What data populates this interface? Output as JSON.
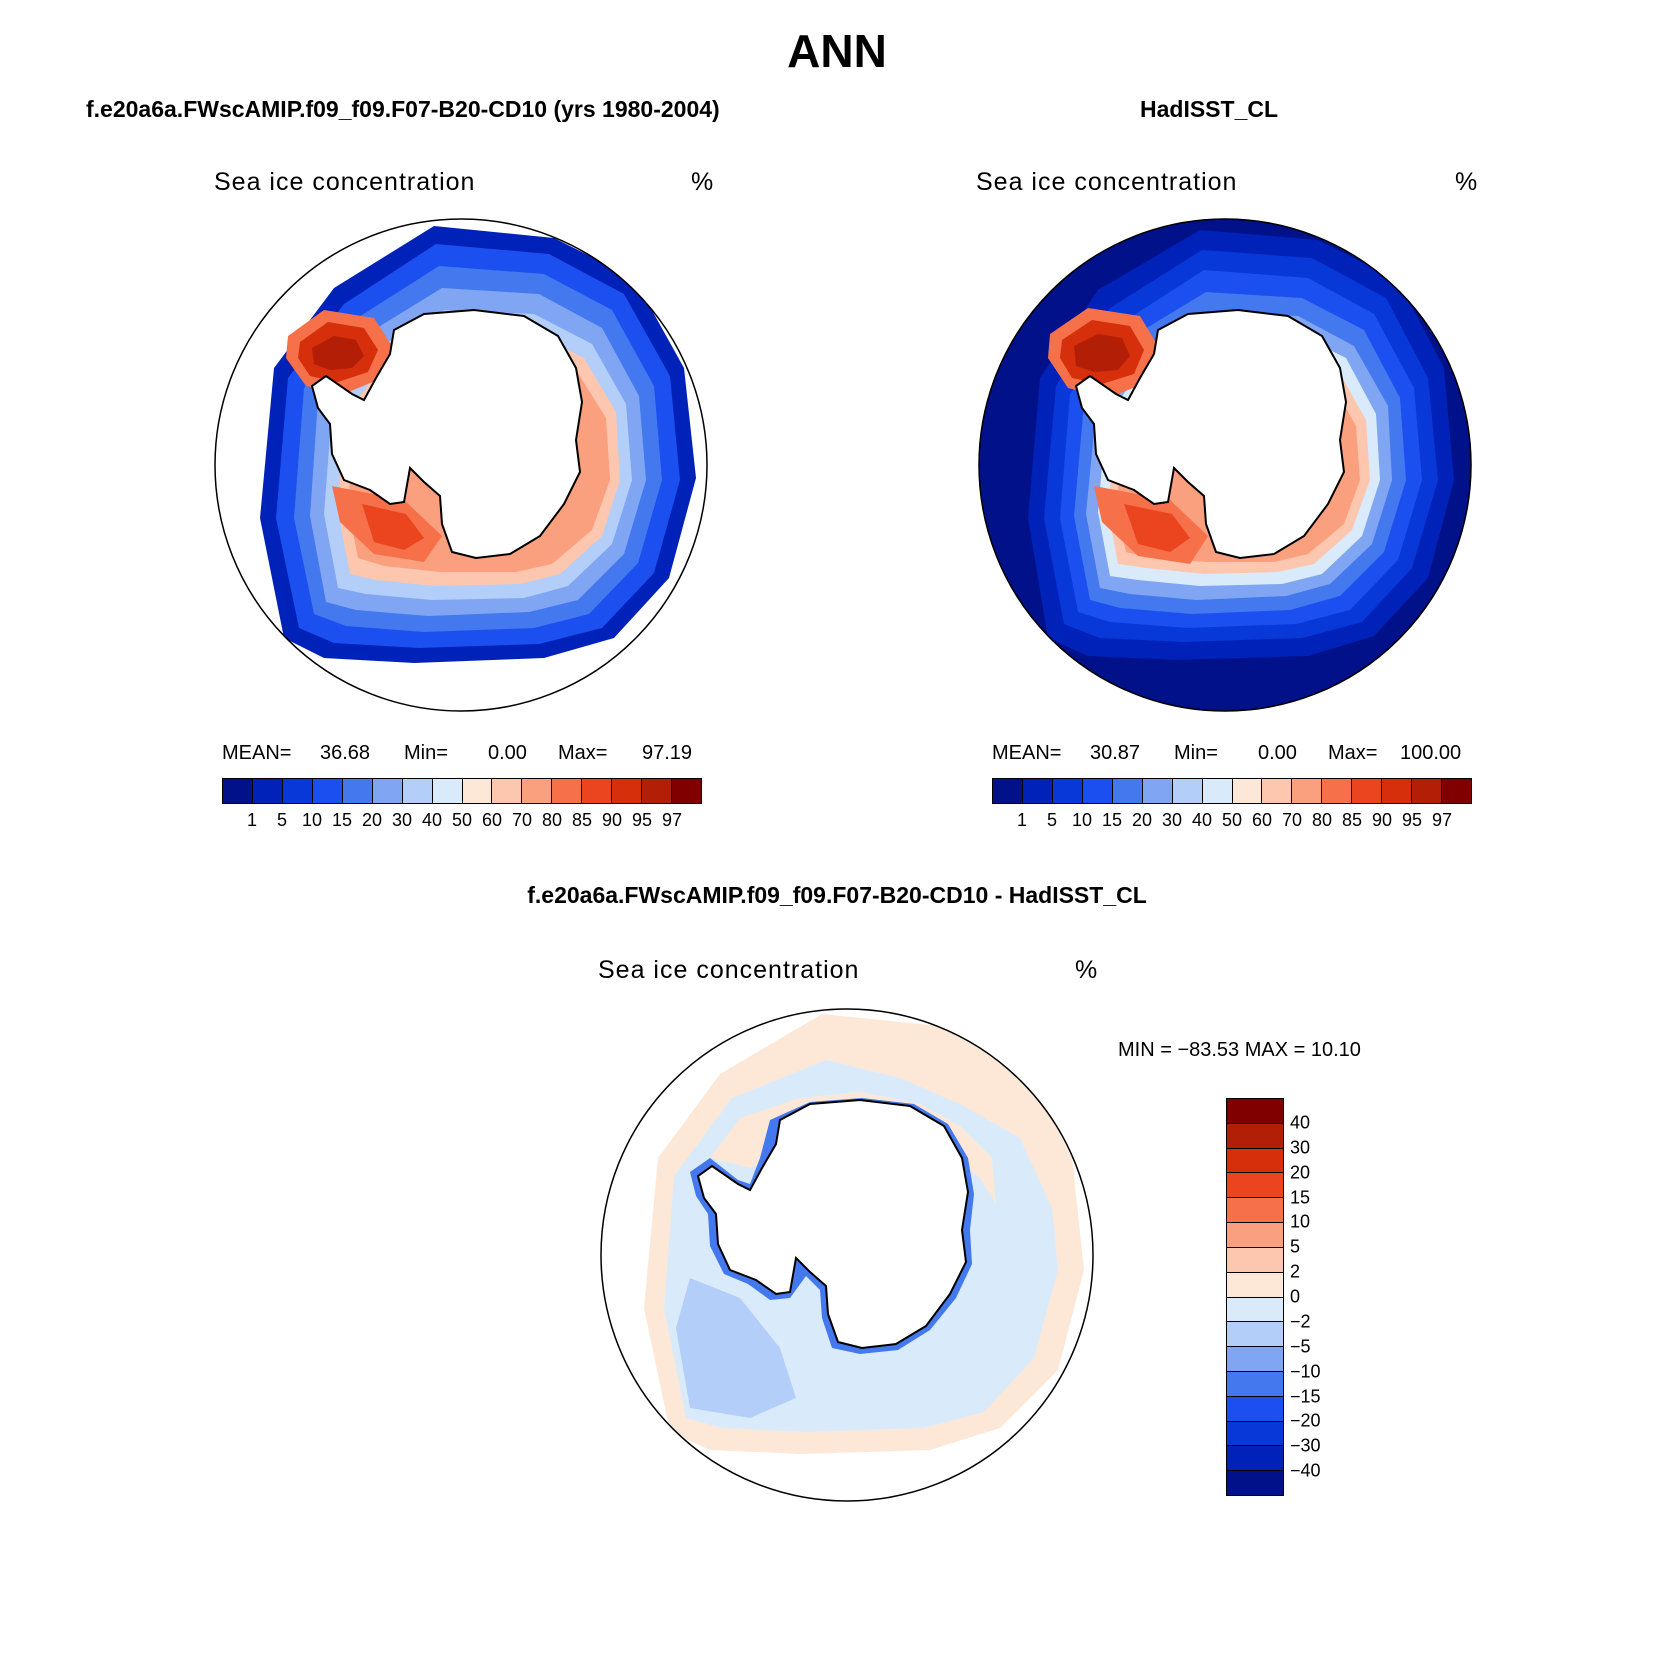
{
  "title": "ANN",
  "panels": [
    {
      "title": "f.e20a6a.FWscAMIP.f09_f09.F07-B20-CD10 (yrs 1980-2004)",
      "variable": "Sea ice concentration",
      "units": "%",
      "mean_label": "MEAN=",
      "mean": "36.68",
      "min_label": "Min=",
      "min": "0.00",
      "max_label": "Max=",
      "max": "97.19"
    },
    {
      "title": "HadISST_CL",
      "variable": "Sea ice concentration",
      "units": "%",
      "mean_label": "MEAN=",
      "mean": "30.87",
      "min_label": "Min=",
      "min": "0.00",
      "max_label": "Max=",
      "max": "100.00"
    },
    {
      "title": "f.e20a6a.FWscAMIP.f09_f09.F07-B20-CD10 - HadISST_CL",
      "variable": "Sea ice concentration",
      "units": "%",
      "minmax": "MIN = −83.53 MAX =   10.10"
    }
  ],
  "colorbar_abs": {
    "levels": [
      "1",
      "5",
      "10",
      "15",
      "20",
      "30",
      "40",
      "50",
      "60",
      "70",
      "80",
      "85",
      "90",
      "95",
      "97"
    ],
    "colors": [
      "#00118a",
      "#0022b8",
      "#0838d8",
      "#1c4ff0",
      "#4478ef",
      "#80a6f3",
      "#b3cef8",
      "#d9ebfb",
      "#fde8d8",
      "#fcc7ae",
      "#fba07e",
      "#f6704a",
      "#eb4520",
      "#d62f0c",
      "#b31e06",
      "#800000"
    ]
  },
  "colorbar_diff": {
    "levels": [
      "40",
      "30",
      "20",
      "15",
      "10",
      "5",
      "2",
      "0",
      "−2",
      "−5",
      "−10",
      "−15",
      "−20",
      "−30",
      "−40"
    ],
    "colors": [
      "#800000",
      "#b31e06",
      "#d62f0c",
      "#eb4520",
      "#f6704a",
      "#fba07e",
      "#fcc7ae",
      "#fde8d8",
      "#d9ebfb",
      "#b3cef8",
      "#80a6f3",
      "#4478ef",
      "#1c4ff0",
      "#0838d8",
      "#0022b8",
      "#00118a"
    ]
  }
}
